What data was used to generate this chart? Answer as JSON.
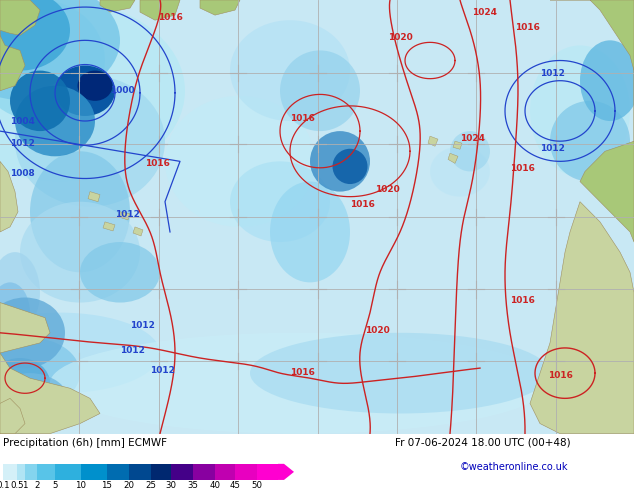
{
  "title_left": "Precipitation (6h) [mm] ECMWF",
  "title_right": "Fr 07-06-2024 18.00 UTC (00+48)",
  "credit": "©weatheronline.co.uk",
  "colorbar_levels": [
    0.1,
    0.5,
    1,
    2,
    5,
    10,
    15,
    20,
    25,
    30,
    35,
    40,
    45,
    50
  ],
  "colorbar_colors": [
    "#d4f0f8",
    "#b0e4f4",
    "#84d4ee",
    "#58c4e8",
    "#2eb0de",
    "#0090cc",
    "#006cb0",
    "#004890",
    "#002870",
    "#440088",
    "#8800a0",
    "#c000b0",
    "#e800c0",
    "#ff00d0"
  ],
  "ocean_color": "#c8e8f4",
  "land_color": "#c8d4a0",
  "land_color2": "#a8c878",
  "prec_light": "#c0ecf8",
  "prec_mid": "#80cce8",
  "prec_deep": "#2880c0",
  "prec_vdeep": "#0040a0",
  "grid_color": "#b0b0b0",
  "blue_isobar": "#2244cc",
  "red_isobar": "#cc2222",
  "brown_coast": "#a09060",
  "figsize": [
    6.34,
    4.9
  ],
  "dpi": 100
}
